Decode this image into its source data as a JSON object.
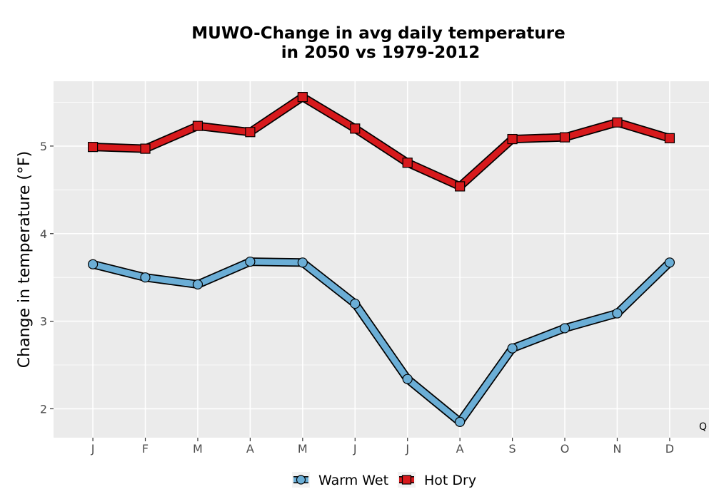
{
  "chart_data": {
    "type": "line",
    "title_lines": [
      "MUWO-Change in avg daily temperature",
      "in 2050 vs 1979-2012"
    ],
    "xlabel": "",
    "ylabel": "Change in temperature (°F)",
    "categories": [
      "J",
      "F",
      "M",
      "A",
      "M",
      "J",
      "J",
      "A",
      "S",
      "O",
      "N",
      "D"
    ],
    "ylim": [
      1.67,
      5.74
    ],
    "yticks": [
      2,
      3,
      4,
      5
    ],
    "grid": true,
    "legend_position": "bottom",
    "corner_note": "Q",
    "series": [
      {
        "name": "Warm Wet",
        "color": "#6baed6",
        "marker": "circle",
        "values": [
          3.65,
          3.5,
          3.42,
          3.68,
          3.67,
          3.2,
          2.34,
          1.85,
          2.69,
          2.92,
          3.09,
          3.67
        ]
      },
      {
        "name": "Hot Dry",
        "color": "#d7191c",
        "marker": "square",
        "values": [
          4.99,
          4.97,
          5.23,
          5.16,
          5.56,
          5.2,
          4.81,
          4.54,
          5.08,
          5.1,
          5.27,
          5.09
        ]
      }
    ]
  }
}
